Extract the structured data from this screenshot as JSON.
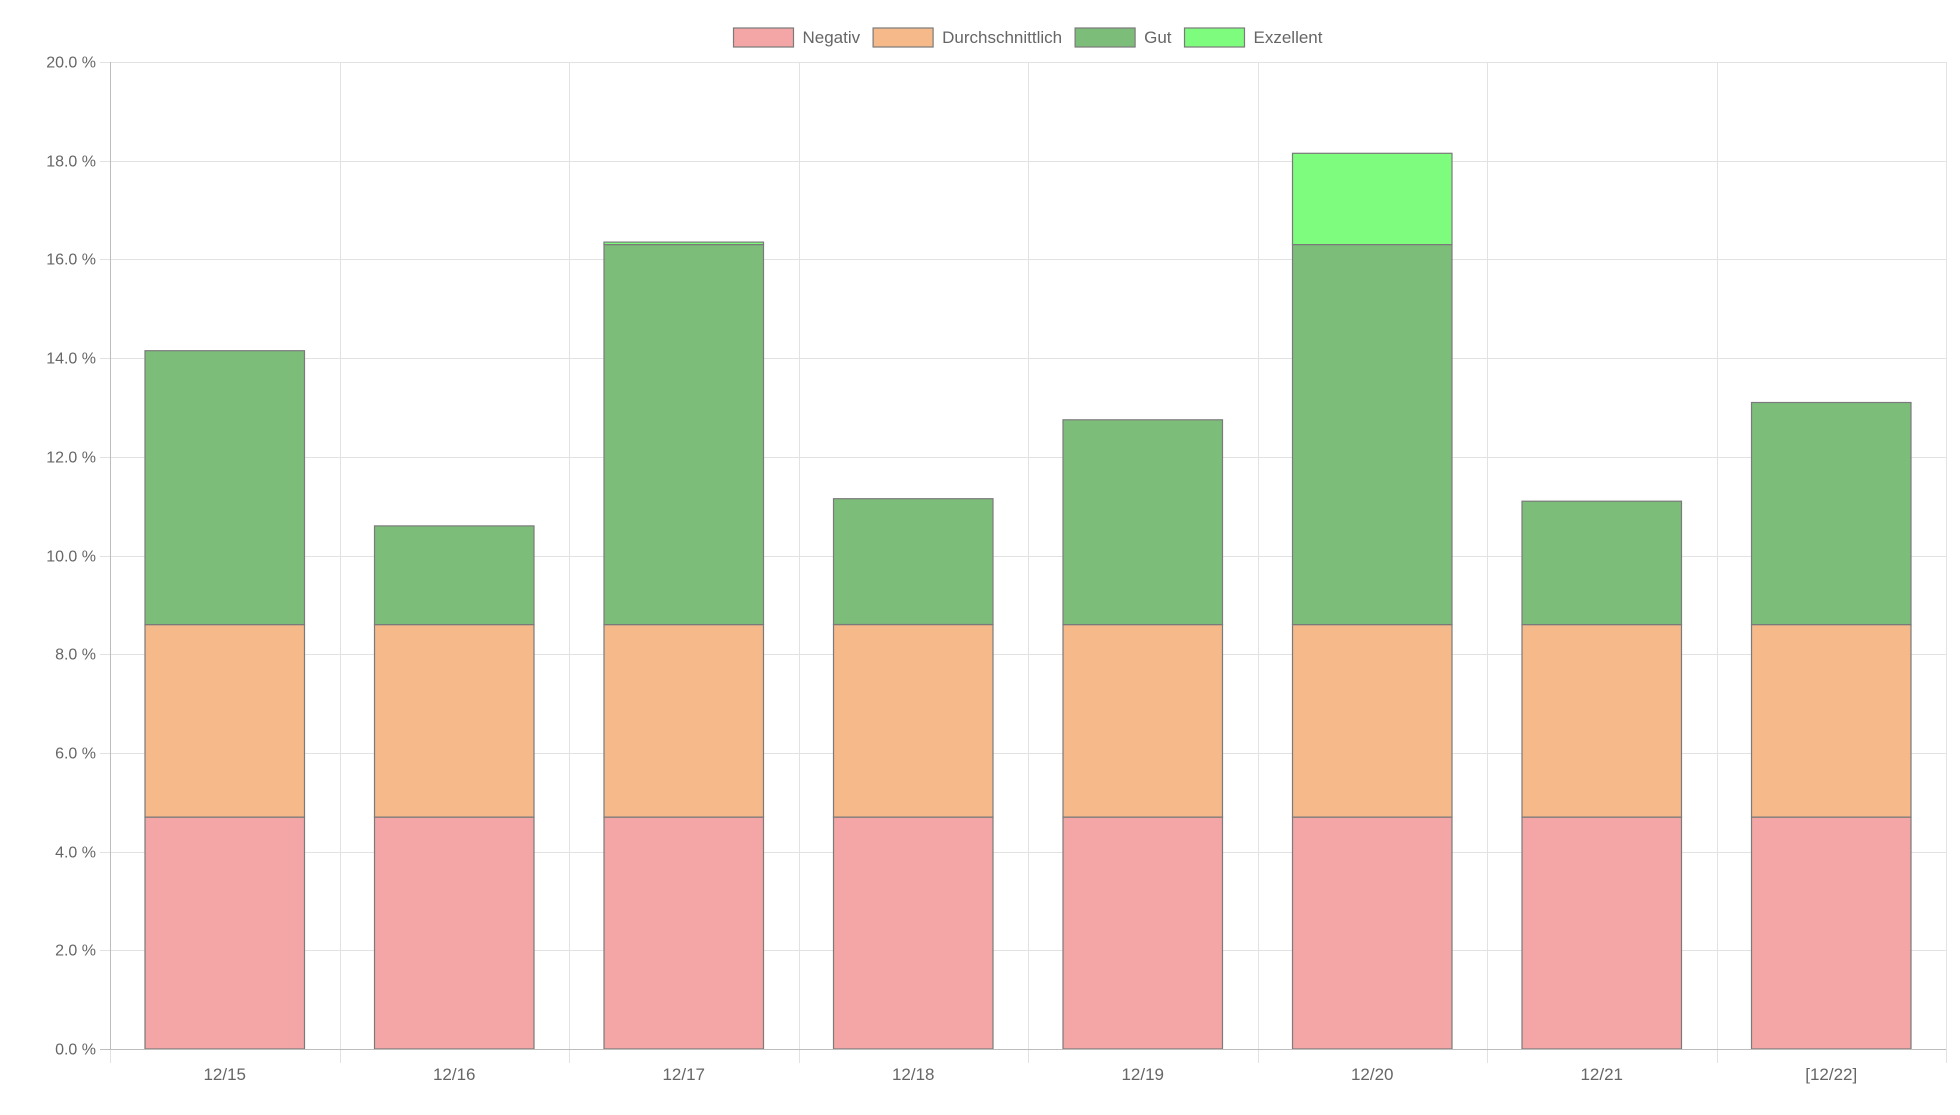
{
  "chart_data": {
    "type": "bar",
    "stacked": true,
    "categories": [
      "12/15",
      "12/16",
      "12/17",
      "12/18",
      "12/19",
      "12/20",
      "12/21",
      "[12/22]"
    ],
    "series": [
      {
        "name": "Negativ",
        "color": "#f4a6a6",
        "values": [
          4.7,
          4.7,
          4.7,
          4.7,
          4.7,
          4.7,
          4.7,
          4.7
        ]
      },
      {
        "name": "Durchschnittlich",
        "color": "#f5b98a",
        "values": [
          3.9,
          3.9,
          3.9,
          3.9,
          3.9,
          3.9,
          3.9,
          3.9
        ]
      },
      {
        "name": "Gut",
        "color": "#7dbd7a",
        "values": [
          5.55,
          2.0,
          7.7,
          2.55,
          4.15,
          7.7,
          2.5,
          4.5
        ]
      },
      {
        "name": "Exzellent",
        "color": "#7dfc7d",
        "values": [
          0,
          0,
          0.05,
          0,
          0,
          1.85,
          0,
          0
        ]
      }
    ],
    "ylim": [
      0,
      20
    ],
    "yticks": [
      "0.0 %",
      "2.0 %",
      "4.0 %",
      "6.0 %",
      "8.0 %",
      "10.0 %",
      "12.0 %",
      "14.0 %",
      "16.0 %",
      "18.0 %",
      "20.0 %"
    ],
    "ytick_step": 2,
    "grid": true,
    "legend_position": "top-center",
    "bar_border_color": "#7a7a7a",
    "grid_color": "#e2e2e2",
    "axis_color": "#bdbdbd",
    "text_color": "#666666"
  }
}
